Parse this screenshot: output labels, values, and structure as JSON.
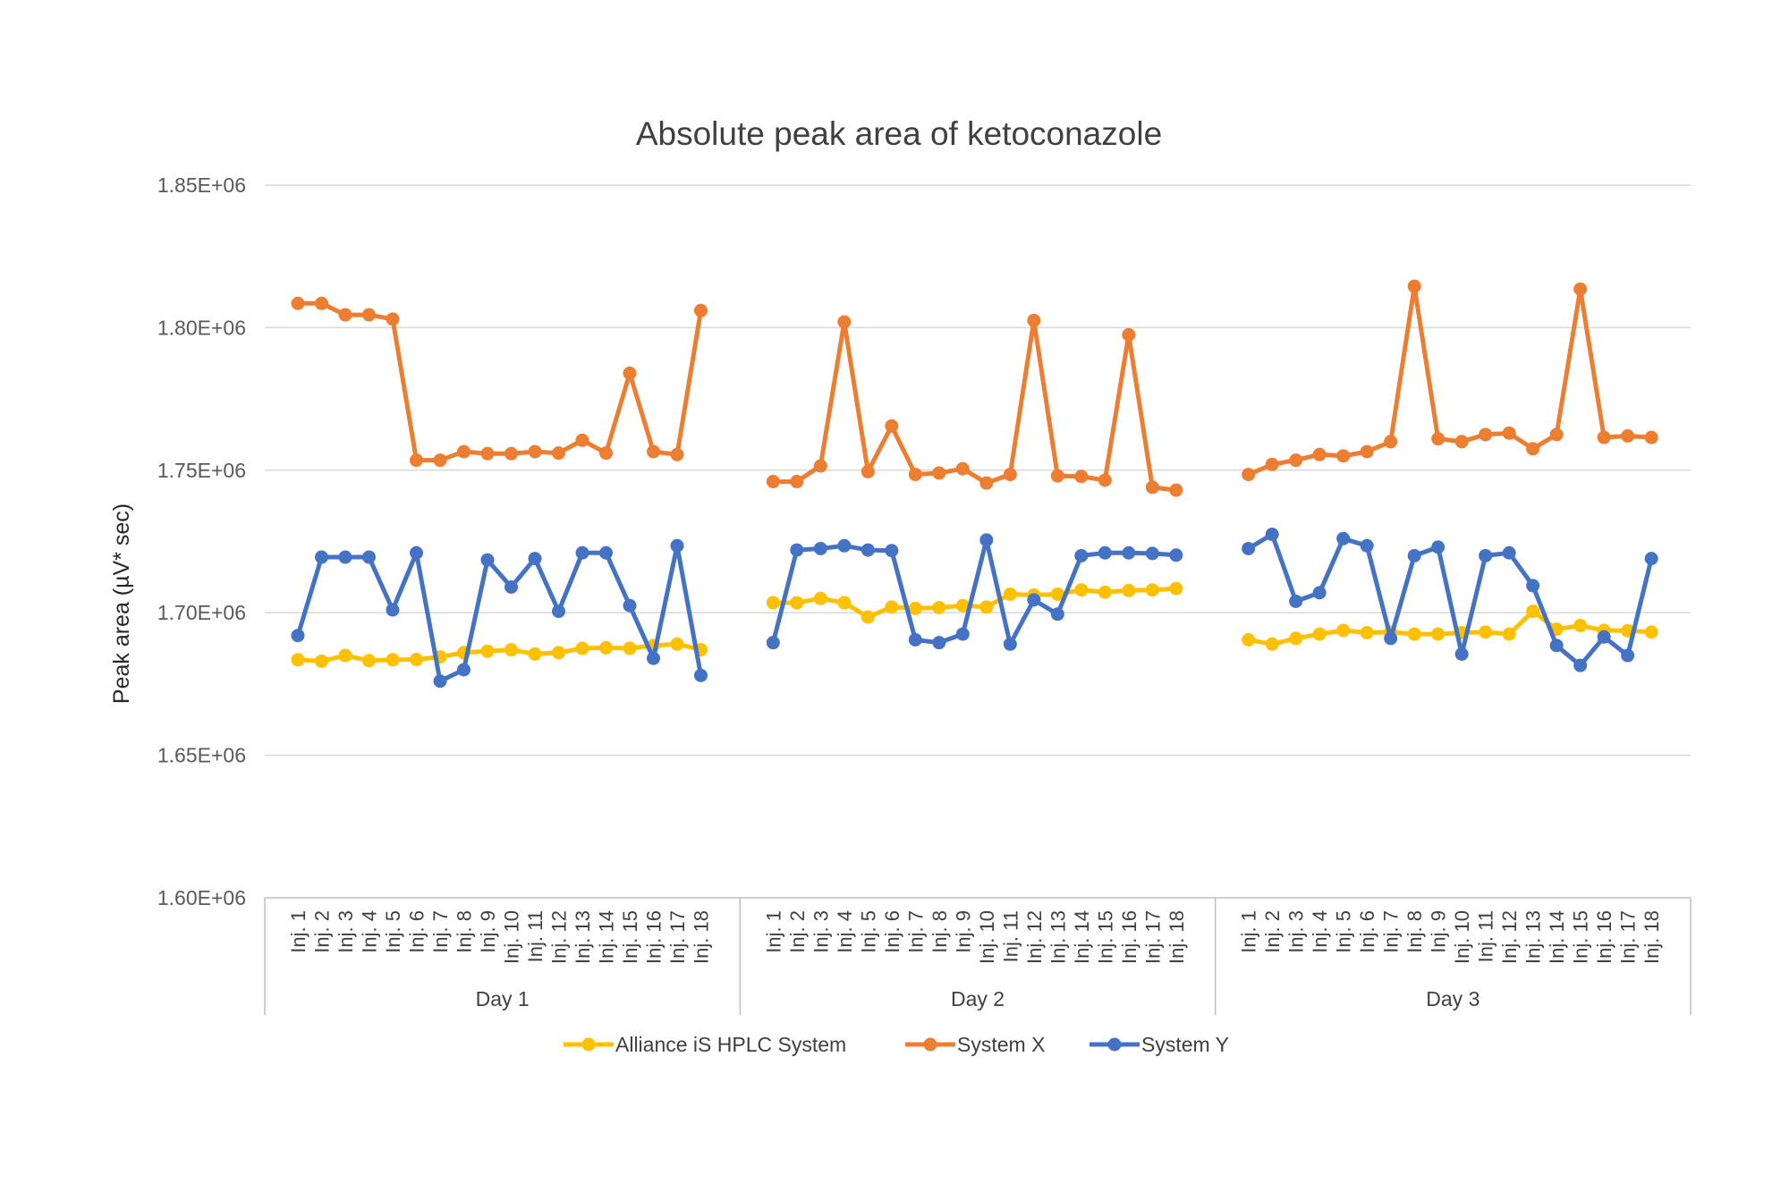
{
  "chart_data": {
    "type": "line",
    "title": "Absolute peak area of ketoconazole",
    "ylabel": "Peak area (µV* sec)",
    "xlabel": "",
    "ylim": [
      1600000,
      1850000
    ],
    "yticks": [
      1600000,
      1650000,
      1700000,
      1750000,
      1800000,
      1850000
    ],
    "ytick_labels": [
      "1.60E+06",
      "1.65E+06",
      "1.70E+06",
      "1.75E+06",
      "1.80E+06",
      "1.85E+06"
    ],
    "groups": [
      "Day 1",
      "Day 2",
      "Day 3"
    ],
    "categories": [
      "Inj. 1",
      "Inj. 2",
      "Inj. 3",
      "Inj. 4",
      "Inj. 5",
      "Inj. 6",
      "Inj. 7",
      "Inj. 8",
      "Inj. 9",
      "Inj. 10",
      "Inj. 11",
      "Inj. 12",
      "Inj. 13",
      "Inj. 14",
      "Inj. 15",
      "Inj. 16",
      "Inj. 17",
      "Inj. 18"
    ],
    "grid": true,
    "legend_position": "bottom",
    "series": [
      {
        "name": "Alliance iS HPLC System",
        "color": "#FFC000",
        "values": [
          [
            1683500,
            1683000,
            1685000,
            1683200,
            1683500,
            1683600,
            1684500,
            1686000,
            1686500,
            1687000,
            1685500,
            1686000,
            1687500,
            1687700,
            1687500,
            1688500,
            1689000,
            1687000
          ],
          [
            1703500,
            1703500,
            1705000,
            1703500,
            1698500,
            1702000,
            1701500,
            1701800,
            1702500,
            1702000,
            1706500,
            1706200,
            1706500,
            1708000,
            1707200,
            1707800,
            1708000,
            1708500
          ],
          [
            1690500,
            1689000,
            1691000,
            1692500,
            1693800,
            1693000,
            1693200,
            1692500,
            1692500,
            1693000,
            1693200,
            1692500,
            1700500,
            1694200,
            1695500,
            1693800,
            1693700,
            1693200
          ]
        ]
      },
      {
        "name": "System X",
        "color": "#ED7D31",
        "values": [
          [
            1808500,
            1808500,
            1804500,
            1804500,
            1803000,
            1753500,
            1753500,
            1756500,
            1755800,
            1755800,
            1756500,
            1756000,
            1760500,
            1756000,
            1784000,
            1756500,
            1755500,
            1806000
          ],
          [
            1746000,
            1746000,
            1751500,
            1802000,
            1749500,
            1765500,
            1748500,
            1749000,
            1750500,
            1745500,
            1748500,
            1802500,
            1748000,
            1747800,
            1746500,
            1797500,
            1744000,
            1743000
          ],
          [
            1748500,
            1752000,
            1753500,
            1755500,
            1755000,
            1756500,
            1760000,
            1814500,
            1761000,
            1760000,
            1762500,
            1763000,
            1757500,
            1762500,
            1813500,
            1761500,
            1762000,
            1761500
          ]
        ]
      },
      {
        "name": "System Y",
        "color": "#4472C4",
        "values": [
          [
            1692000,
            1719500,
            1719500,
            1719500,
            1701000,
            1721000,
            1676000,
            1680000,
            1718500,
            1709000,
            1719000,
            1700500,
            1721000,
            1721000,
            1702500,
            1684000,
            1723500,
            1678000
          ],
          [
            1689500,
            1722000,
            1722500,
            1723500,
            1722000,
            1721800,
            1690500,
            1689500,
            1692500,
            1725500,
            1689000,
            1704500,
            1699500,
            1720000,
            1721000,
            1721000,
            1720800,
            1720200
          ],
          [
            1722500,
            1727500,
            1704000,
            1707000,
            1726000,
            1723500,
            1691000,
            1720000,
            1723000,
            1685500,
            1720000,
            1721000,
            1709500,
            1688500,
            1681500,
            1691500,
            1685000,
            1719000
          ]
        ]
      }
    ]
  }
}
